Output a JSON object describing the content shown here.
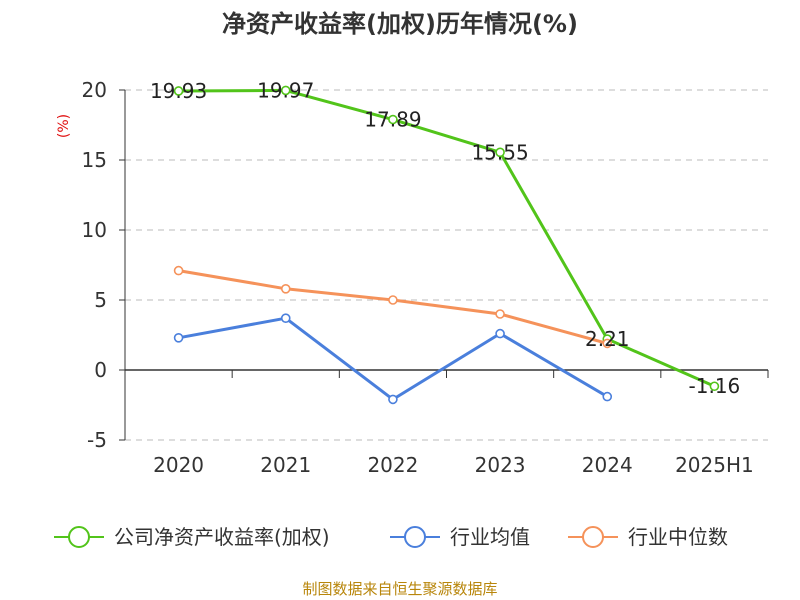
{
  "chart_data": {
    "type": "line",
    "title": "净资产收益率(加权)历年情况(%)",
    "ylabel": "(%)",
    "categories": [
      "2020",
      "2021",
      "2022",
      "2023",
      "2024",
      "2025H1"
    ],
    "ylim": [
      -5,
      20
    ],
    "yticks": [
      20,
      15,
      10,
      5,
      0,
      -5
    ],
    "grid": true,
    "legend_position": "bottom",
    "series": [
      {
        "name": "公司净资产收益率(加权)",
        "color": "#52c41a",
        "values": [
          19.93,
          19.97,
          17.89,
          15.55,
          2.21,
          -1.16
        ],
        "labels": [
          "19.93",
          "19.97",
          "17.89",
          "15.55",
          "2.21",
          "-1.16"
        ]
      },
      {
        "name": "行业均值",
        "color": "#4a7fdc",
        "values": [
          2.3,
          3.7,
          -2.1,
          2.6,
          -1.9,
          null
        ]
      },
      {
        "name": "行业中位数",
        "color": "#f5925a",
        "values": [
          7.1,
          5.8,
          5.0,
          4.0,
          1.9,
          null
        ]
      }
    ]
  },
  "footer": {
    "source": "制图数据来自恒生聚源数据库"
  }
}
